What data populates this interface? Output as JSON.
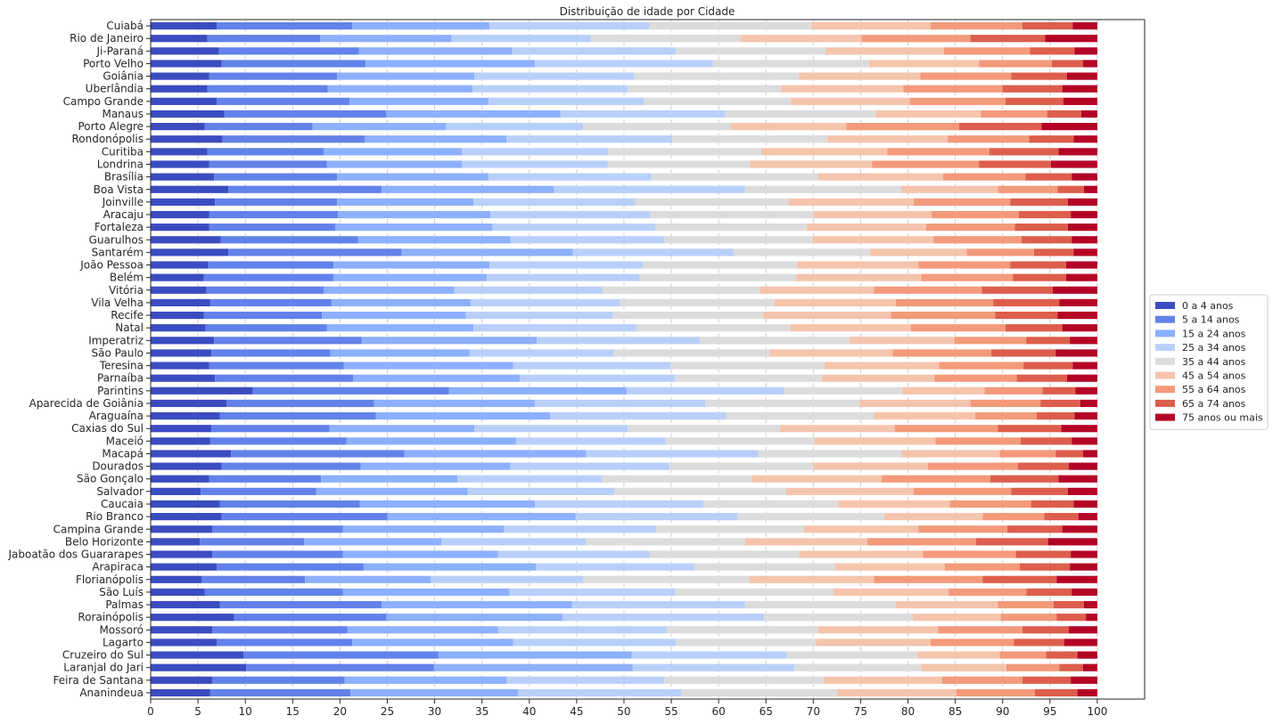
{
  "chart_data": {
    "type": "bar",
    "orientation": "horizontal",
    "stacked": true,
    "title": "Distribuição de idade por Cidade",
    "xlim": [
      0,
      105
    ],
    "xticks": [
      0,
      5,
      10,
      15,
      20,
      25,
      30,
      35,
      40,
      45,
      50,
      55,
      60,
      65,
      70,
      75,
      80,
      85,
      90,
      95,
      100
    ],
    "grid": "vertical",
    "legend_position": "right-center",
    "series": [
      {
        "name": "0 a 4 anos",
        "color": "#3b4cc0"
      },
      {
        "name": "5 a 14 anos",
        "color": "#6282ea"
      },
      {
        "name": "15 a 24 anos",
        "color": "#8db0fe"
      },
      {
        "name": "25 a 34 anos",
        "color": "#b8d0f9"
      },
      {
        "name": "35 a 44 anos",
        "color": "#dddcdc"
      },
      {
        "name": "45 a 54 anos",
        "color": "#f5c4ac"
      },
      {
        "name": "55 a 64 anos",
        "color": "#f39a7b"
      },
      {
        "name": "65 a 74 anos",
        "color": "#dd5e4d"
      },
      {
        "name": "75 anos ou mais",
        "color": "#b40426"
      }
    ],
    "categories": [
      "Cuiabá",
      "Rio de Janeiro",
      "Ji-Paraná",
      "Porto Velho",
      "Goiânia",
      "Uberlândia",
      "Campo Grande",
      "Manaus",
      "Porto Alegre",
      "Rondonópolis",
      "Curitiba",
      "Londrina",
      "Brasília",
      "Boa Vista",
      "Joinville",
      "Aracaju",
      "Fortaleza",
      "Guarulhos",
      "Santarém",
      "João Pessoa",
      "Belém",
      "Vitória",
      "Vila Velha",
      "Recife",
      "Natal",
      "Imperatriz",
      "São Paulo",
      "Teresina",
      "Parnaíba",
      "Parintins",
      "Aparecida de Goiânia",
      "Araguaína",
      "Caxias do Sul",
      "Maceió",
      "Macapá",
      "Dourados",
      "São Gonçalo",
      "Salvador",
      "Caucaia",
      "Rio Branco",
      "Campina Grande",
      "Belo Horizonte",
      "Jaboatão dos Guararapes",
      "Arapiraca",
      "Florianópolis",
      "São Luís",
      "Palmas",
      "Rorainópolis",
      "Mossoró",
      "Lagarto",
      "Cruzeiro do Sul",
      "Laranjal do Jari",
      "Feira de Santana",
      "Ananindeua"
    ],
    "cumulative": [
      [
        7.0,
        21.3,
        35.8,
        52.7,
        69.8,
        82.4,
        92.1,
        97.4,
        100
      ],
      [
        6.0,
        17.9,
        31.8,
        46.5,
        62.3,
        75.1,
        86.6,
        94.5,
        100
      ],
      [
        7.2,
        22.0,
        38.2,
        55.5,
        71.3,
        83.8,
        92.9,
        97.6,
        100
      ],
      [
        7.5,
        22.7,
        40.6,
        59.4,
        75.9,
        87.5,
        95.2,
        98.5,
        100
      ],
      [
        6.2,
        19.7,
        34.2,
        51.1,
        68.5,
        81.3,
        90.9,
        96.8,
        100
      ],
      [
        6.0,
        18.7,
        34.0,
        50.4,
        66.6,
        79.5,
        90.0,
        96.3,
        100
      ],
      [
        7.0,
        21.0,
        35.7,
        52.1,
        67.6,
        80.2,
        90.3,
        96.4,
        100
      ],
      [
        7.8,
        24.9,
        43.3,
        60.7,
        76.6,
        87.7,
        94.7,
        98.3,
        100
      ],
      [
        5.7,
        17.1,
        31.2,
        45.7,
        61.3,
        73.5,
        85.4,
        94.1,
        100
      ],
      [
        7.6,
        22.6,
        37.6,
        55.1,
        71.5,
        84.2,
        92.8,
        97.5,
        100
      ],
      [
        6.0,
        18.3,
        32.9,
        48.3,
        64.5,
        77.8,
        88.6,
        95.9,
        100
      ],
      [
        6.2,
        18.6,
        32.9,
        48.3,
        63.3,
        76.2,
        87.5,
        95.1,
        100
      ],
      [
        6.7,
        19.7,
        35.7,
        52.9,
        70.5,
        83.7,
        92.4,
        97.3,
        100
      ],
      [
        8.2,
        24.4,
        42.6,
        62.8,
        79.3,
        89.5,
        95.8,
        98.6,
        100
      ],
      [
        6.8,
        19.7,
        34.1,
        51.2,
        67.4,
        80.6,
        90.8,
        96.9,
        100
      ],
      [
        6.2,
        19.8,
        35.9,
        52.8,
        70.0,
        82.5,
        91.7,
        97.2,
        100
      ],
      [
        6.2,
        19.5,
        36.1,
        53.3,
        69.3,
        81.9,
        91.3,
        96.9,
        100
      ],
      [
        7.4,
        21.9,
        38.0,
        54.2,
        69.9,
        82.7,
        92.0,
        97.3,
        100
      ],
      [
        8.2,
        26.5,
        44.6,
        61.6,
        76.0,
        86.2,
        93.3,
        97.5,
        100
      ],
      [
        6.1,
        19.3,
        35.8,
        52.0,
        68.3,
        81.1,
        90.8,
        96.7,
        100
      ],
      [
        5.6,
        19.3,
        35.5,
        51.6,
        68.2,
        81.4,
        91.1,
        96.7,
        100
      ],
      [
        5.9,
        18.3,
        32.1,
        47.7,
        64.4,
        76.4,
        87.8,
        95.3,
        100
      ],
      [
        6.3,
        19.1,
        33.8,
        49.6,
        65.9,
        78.7,
        89.0,
        96.0,
        100
      ],
      [
        5.6,
        18.1,
        33.3,
        48.8,
        64.7,
        78.2,
        89.2,
        95.8,
        100
      ],
      [
        5.8,
        18.6,
        34.1,
        51.3,
        67.6,
        80.3,
        90.3,
        96.3,
        100
      ],
      [
        6.7,
        22.3,
        40.8,
        58.0,
        73.8,
        84.9,
        92.5,
        97.1,
        100
      ],
      [
        6.4,
        19.0,
        33.7,
        48.9,
        65.4,
        78.4,
        88.8,
        95.6,
        100
      ],
      [
        6.2,
        20.4,
        38.3,
        54.9,
        71.2,
        83.3,
        92.2,
        97.4,
        100
      ],
      [
        6.8,
        21.4,
        39.0,
        55.4,
        70.9,
        82.8,
        91.5,
        96.8,
        100
      ],
      [
        10.8,
        31.5,
        50.3,
        66.9,
        79.4,
        88.1,
        94.2,
        97.7,
        100
      ],
      [
        8.0,
        23.6,
        40.6,
        58.6,
        74.9,
        86.6,
        94.0,
        98.2,
        100
      ],
      [
        7.3,
        23.8,
        42.2,
        60.8,
        76.4,
        87.1,
        93.6,
        97.6,
        100
      ],
      [
        6.4,
        18.9,
        34.2,
        50.4,
        66.5,
        78.6,
        89.5,
        96.2,
        100
      ],
      [
        6.3,
        20.7,
        38.6,
        54.4,
        70.1,
        82.9,
        91.9,
        97.3,
        100
      ],
      [
        8.5,
        26.8,
        46.0,
        64.2,
        79.3,
        89.7,
        95.6,
        98.5,
        100
      ],
      [
        7.5,
        22.2,
        38.0,
        54.8,
        70.0,
        82.1,
        91.6,
        97.0,
        100
      ],
      [
        6.2,
        18.0,
        32.4,
        47.7,
        63.5,
        77.2,
        88.7,
        95.9,
        100
      ],
      [
        5.3,
        17.5,
        33.5,
        49.0,
        67.1,
        80.6,
        90.9,
        96.9,
        100
      ],
      [
        7.3,
        22.1,
        40.6,
        58.4,
        72.7,
        84.4,
        93.0,
        97.5,
        100
      ],
      [
        7.5,
        25.0,
        44.9,
        62.0,
        77.5,
        87.9,
        94.4,
        98.0,
        100
      ],
      [
        6.5,
        20.3,
        37.3,
        53.4,
        69.0,
        81.1,
        90.5,
        96.3,
        100
      ],
      [
        5.2,
        16.2,
        30.7,
        46.0,
        62.8,
        75.7,
        87.2,
        94.8,
        100
      ],
      [
        6.5,
        20.3,
        36.7,
        52.7,
        68.5,
        81.6,
        91.4,
        97.2,
        100
      ],
      [
        7.0,
        22.5,
        40.7,
        57.4,
        72.3,
        83.9,
        91.8,
        97.1,
        100
      ],
      [
        5.4,
        16.3,
        29.6,
        45.7,
        63.2,
        76.4,
        87.9,
        95.7,
        100
      ],
      [
        5.7,
        20.3,
        37.9,
        55.4,
        72.1,
        84.3,
        92.5,
        97.3,
        100
      ],
      [
        7.3,
        24.4,
        44.5,
        62.8,
        78.7,
        89.5,
        95.4,
        98.6,
        100
      ],
      [
        8.8,
        24.9,
        43.5,
        64.8,
        80.5,
        89.8,
        95.7,
        98.8,
        100
      ],
      [
        6.5,
        20.8,
        36.7,
        54.5,
        70.5,
        83.2,
        92.1,
        97.0,
        100
      ],
      [
        7.0,
        21.3,
        38.3,
        55.5,
        70.3,
        82.4,
        91.2,
        96.5,
        100
      ],
      [
        9.8,
        30.4,
        50.8,
        67.2,
        81.0,
        89.7,
        94.6,
        97.9,
        100
      ],
      [
        10.1,
        29.9,
        50.9,
        68.0,
        81.4,
        90.4,
        96.0,
        98.5,
        100
      ],
      [
        6.5,
        20.5,
        37.6,
        54.2,
        71.1,
        83.6,
        92.1,
        97.2,
        100
      ],
      [
        6.3,
        21.1,
        38.8,
        56.1,
        72.5,
        85.1,
        93.4,
        97.9,
        100
      ]
    ]
  }
}
